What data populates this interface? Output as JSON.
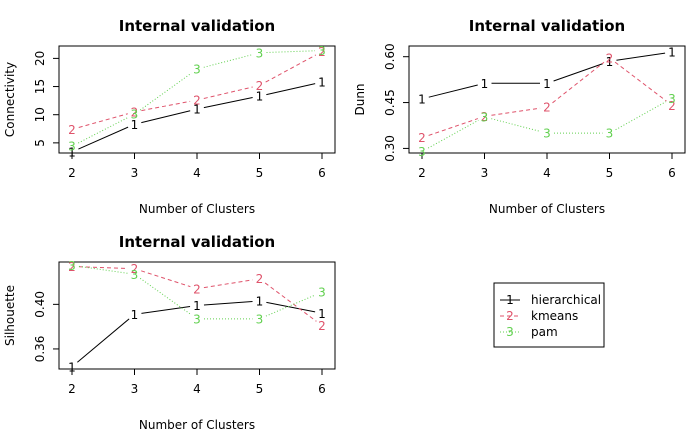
{
  "legend": {
    "entries": [
      {
        "marker": "1",
        "label": "hierarchical",
        "color": "#000000",
        "dash": "solid"
      },
      {
        "marker": "2",
        "label": "kmeans",
        "color": "#DF536B",
        "dash": "dashed"
      },
      {
        "marker": "3",
        "label": "pam",
        "color": "#61D04F",
        "dash": "dotted"
      }
    ]
  },
  "chart_data": [
    {
      "type": "line",
      "title": "Internal validation",
      "xlabel": "Number of Clusters",
      "ylabel": "Connectivity",
      "x": [
        2,
        3,
        4,
        5,
        6
      ],
      "xlim": [
        2,
        6
      ],
      "ylim": [
        3.2,
        22.2
      ],
      "yticks": [
        5,
        10,
        15,
        20
      ],
      "ytick_labels": [
        "5",
        "10",
        "15",
        "20"
      ],
      "series": [
        {
          "name": "hierarchical",
          "marker": "1",
          "values": [
            3.4,
            8.3,
            11.0,
            13.3,
            15.8
          ]
        },
        {
          "name": "kmeans",
          "marker": "2",
          "values": [
            7.4,
            10.5,
            12.6,
            15.2,
            21.2
          ]
        },
        {
          "name": "pam",
          "marker": "3",
          "values": [
            4.4,
            10.1,
            18.1,
            21.0,
            21.4
          ]
        }
      ]
    },
    {
      "type": "line",
      "title": "Internal validation",
      "xlabel": "Number of Clusters",
      "ylabel": "Dunn",
      "x": [
        2,
        3,
        4,
        5,
        6
      ],
      "xlim": [
        2,
        6
      ],
      "ylim": [
        0.285,
        0.635
      ],
      "yticks": [
        0.3,
        0.45,
        0.6
      ],
      "ytick_labels": [
        "0.30",
        "0.45",
        "0.60"
      ],
      "series": [
        {
          "name": "hierarchical",
          "marker": "1",
          "values": [
            0.462,
            0.513,
            0.513,
            0.585,
            0.615
          ]
        },
        {
          "name": "kmeans",
          "marker": "2",
          "values": [
            0.335,
            0.405,
            0.435,
            0.596,
            0.441
          ]
        },
        {
          "name": "pam",
          "marker": "3",
          "values": [
            0.29,
            0.403,
            0.35,
            0.35,
            0.464
          ]
        }
      ]
    },
    {
      "type": "line",
      "title": "Internal validation",
      "xlabel": "Number of Clusters",
      "ylabel": "Silhouette",
      "x": [
        2,
        3,
        4,
        5,
        6
      ],
      "xlim": [
        2,
        6
      ],
      "ylim": [
        0.342,
        0.438
      ],
      "yticks": [
        0.36,
        0.4
      ],
      "ytick_labels": [
        "0.36",
        "0.40"
      ],
      "series": [
        {
          "name": "hierarchical",
          "marker": "1",
          "values": [
            0.344,
            0.391,
            0.399,
            0.403,
            0.392
          ]
        },
        {
          "name": "kmeans",
          "marker": "2",
          "values": [
            0.434,
            0.432,
            0.414,
            0.423,
            0.381
          ]
        },
        {
          "name": "pam",
          "marker": "3",
          "values": [
            0.435,
            0.427,
            0.387,
            0.387,
            0.411
          ]
        }
      ]
    }
  ]
}
